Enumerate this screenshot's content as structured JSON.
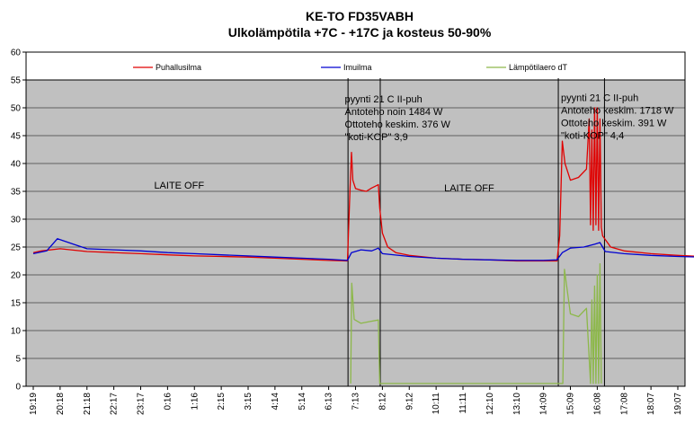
{
  "chart_data": {
    "type": "line",
    "title": "KE-TO FD35VABH",
    "subtitle": "Ulkolämpötila +7C - +17C ja kosteus 50-90%",
    "xlabel": "",
    "ylabel": "",
    "ylim": [
      0,
      60
    ],
    "yticks": [
      0,
      5,
      10,
      15,
      20,
      25,
      30,
      35,
      40,
      45,
      50,
      55,
      60
    ],
    "grid": true,
    "legend_position": "top",
    "x_tick_labels": [
      "19:19",
      "20:18",
      "21:18",
      "22:17",
      "23:17",
      "0:16",
      "1:16",
      "2:15",
      "3:15",
      "4:14",
      "5:14",
      "6:13",
      "7:13",
      "8:12",
      "9:12",
      "10:11",
      "11:11",
      "12:10",
      "13:10",
      "14:09",
      "15:09",
      "16:08",
      "17:08",
      "18:07",
      "19:07"
    ],
    "series": [
      {
        "name": "Puhallusilma",
        "color": "#e00000",
        "points": [
          [
            0,
            24.0
          ],
          [
            0.3,
            24.3
          ],
          [
            1.0,
            24.7
          ],
          [
            2.0,
            24.2
          ],
          [
            3.0,
            24.0
          ],
          [
            4.0,
            23.8
          ],
          [
            5.0,
            23.6
          ],
          [
            6.0,
            23.4
          ],
          [
            7.0,
            23.3
          ],
          [
            8.0,
            23.2
          ],
          [
            9.0,
            23.0
          ],
          [
            10.0,
            22.8
          ],
          [
            11.0,
            22.6
          ],
          [
            11.7,
            22.5
          ],
          [
            11.8,
            36.0
          ],
          [
            11.85,
            42.0
          ],
          [
            11.9,
            37.0
          ],
          [
            12.0,
            35.5
          ],
          [
            12.2,
            35.2
          ],
          [
            12.4,
            35.0
          ],
          [
            12.6,
            35.6
          ],
          [
            12.85,
            36.2
          ],
          [
            12.9,
            32.0
          ],
          [
            13.0,
            27.5
          ],
          [
            13.2,
            25.0
          ],
          [
            13.5,
            24.0
          ],
          [
            14.0,
            23.5
          ],
          [
            15.0,
            23.0
          ],
          [
            16.0,
            22.8
          ],
          [
            17.0,
            22.7
          ],
          [
            18.0,
            22.5
          ],
          [
            19.0,
            22.5
          ],
          [
            19.5,
            22.5
          ],
          [
            19.6,
            27.0
          ],
          [
            19.7,
            44.0
          ],
          [
            19.8,
            40.0
          ],
          [
            20.0,
            37.0
          ],
          [
            20.3,
            37.5
          ],
          [
            20.6,
            39.0
          ],
          [
            20.7,
            48.0
          ],
          [
            20.75,
            29.0
          ],
          [
            20.8,
            46.0
          ],
          [
            20.85,
            28.0
          ],
          [
            20.9,
            50.0
          ],
          [
            20.95,
            29.0
          ],
          [
            21.0,
            50.0
          ],
          [
            21.05,
            28.0
          ],
          [
            21.1,
            48.0
          ],
          [
            21.15,
            28.5
          ],
          [
            21.2,
            27.0
          ],
          [
            21.5,
            25.0
          ],
          [
            22.0,
            24.3
          ],
          [
            23.0,
            23.8
          ],
          [
            24.0,
            23.5
          ],
          [
            24.8,
            23.3
          ]
        ]
      },
      {
        "name": "Imuilma",
        "color": "#0000d0",
        "points": [
          [
            0,
            23.8
          ],
          [
            0.5,
            24.3
          ],
          [
            0.9,
            26.5
          ],
          [
            1.5,
            25.5
          ],
          [
            2.0,
            24.7
          ],
          [
            3.0,
            24.5
          ],
          [
            4.0,
            24.3
          ],
          [
            5.0,
            24.0
          ],
          [
            6.0,
            23.8
          ],
          [
            7.0,
            23.6
          ],
          [
            8.0,
            23.4
          ],
          [
            9.0,
            23.2
          ],
          [
            10.0,
            23.0
          ],
          [
            11.0,
            22.8
          ],
          [
            11.7,
            22.6
          ],
          [
            11.85,
            24.0
          ],
          [
            12.2,
            24.5
          ],
          [
            12.6,
            24.3
          ],
          [
            12.85,
            24.8
          ],
          [
            13.0,
            23.8
          ],
          [
            14.0,
            23.3
          ],
          [
            15.0,
            23.0
          ],
          [
            16.0,
            22.8
          ],
          [
            17.0,
            22.7
          ],
          [
            18.0,
            22.6
          ],
          [
            19.0,
            22.6
          ],
          [
            19.5,
            22.7
          ],
          [
            19.7,
            24.0
          ],
          [
            20.0,
            24.8
          ],
          [
            20.5,
            25.0
          ],
          [
            20.9,
            25.5
          ],
          [
            21.1,
            25.8
          ],
          [
            21.3,
            24.2
          ],
          [
            22.0,
            23.8
          ],
          [
            23.0,
            23.5
          ],
          [
            24.0,
            23.3
          ],
          [
            24.8,
            23.2
          ]
        ]
      },
      {
        "name": "Lämpötilaero dT",
        "color": "#8db84a",
        "points": [
          [
            11.82,
            0.5
          ],
          [
            11.86,
            18.5
          ],
          [
            11.95,
            12.0
          ],
          [
            12.2,
            11.3
          ],
          [
            12.5,
            11.6
          ],
          [
            12.85,
            11.9
          ],
          [
            12.9,
            0.5
          ],
          [
            19.72,
            0.5
          ],
          [
            19.78,
            21.0
          ],
          [
            20.0,
            13.0
          ],
          [
            20.3,
            12.5
          ],
          [
            20.6,
            14.0
          ],
          [
            20.75,
            0.5
          ],
          [
            20.8,
            15.5
          ],
          [
            20.85,
            0.5
          ],
          [
            20.9,
            18.0
          ],
          [
            20.95,
            0.5
          ],
          [
            21.0,
            20.0
          ],
          [
            21.05,
            0.5
          ],
          [
            21.1,
            22.0
          ],
          [
            21.15,
            0.5
          ]
        ]
      }
    ],
    "annotations": [
      {
        "lines": [
          "LAITE OFF"
        ],
        "x": 4.5,
        "y": 35.5
      },
      {
        "lines": [
          "pyynti 21 C II-puh",
          "Antoteho noin 1484 W",
          "Ottoteho keskim. 376 W",
          "\"koti-KOP\" 3,9"
        ],
        "x": 11.6,
        "y": 51.0
      },
      {
        "lines": [
          "LAITE OFF"
        ],
        "x": 15.3,
        "y": 35.0
      },
      {
        "lines": [
          "pyynti 21 C II-puh",
          "Antoteho keskim. 1718 W",
          "Ottoteho keskim. 391 W",
          "\"koti-KOP\" 4,4"
        ],
        "x": 19.65,
        "y": 51.2
      }
    ],
    "vertical_markers": [
      11.72,
      12.92,
      19.55,
      21.27
    ]
  }
}
